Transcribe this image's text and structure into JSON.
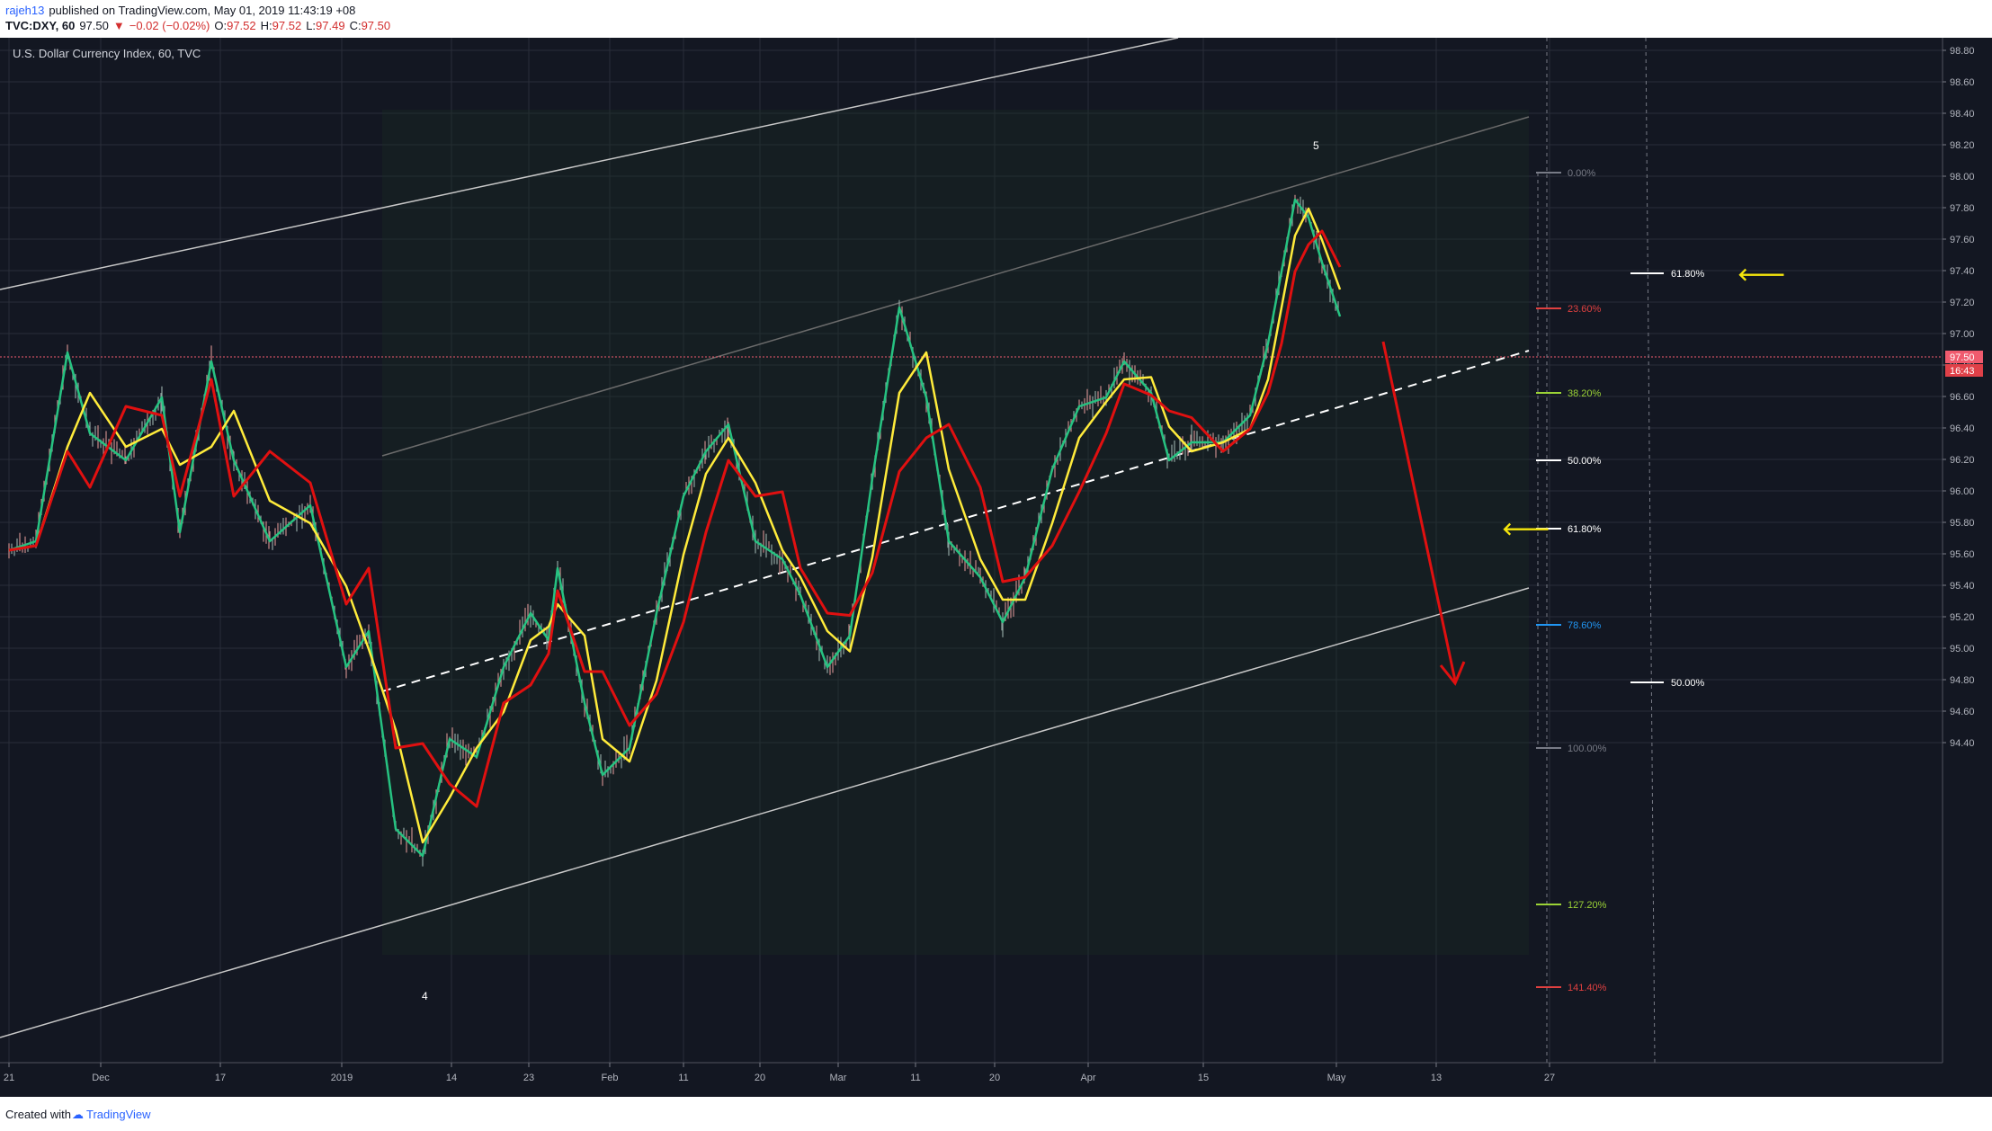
{
  "header": {
    "author": "rajeh13",
    "published_text": "published on TradingView.com, May 01, 2019 11:43:19 +08",
    "symbol": "TVC:DXY, 60",
    "last": "97.50",
    "change": "−0.02 (−0.02%)",
    "o_label": "O:",
    "o_value": "97.52",
    "h_label": "H:",
    "h_value": "97.52",
    "l_label": "L:",
    "l_value": "97.49",
    "c_label": "C:",
    "c_value": "97.50"
  },
  "chart": {
    "title": "U.S. Dollar Currency Index, 60, TVC",
    "price_axis": [
      "98.80",
      "98.60",
      "98.40",
      "98.20",
      "98.00",
      "97.80",
      "97.60",
      "97.40",
      "97.20",
      "97.00",
      "96.80",
      "96.60",
      "96.40",
      "96.20",
      "96.00",
      "95.80",
      "95.60",
      "95.40",
      "95.20",
      "95.00",
      "94.80",
      "94.60",
      "94.40"
    ],
    "time_axis": [
      "21",
      "Dec",
      "17",
      "2019",
      "14",
      "23",
      "Feb",
      "11",
      "20",
      "Mar",
      "11",
      "20",
      "Apr",
      "15",
      "May",
      "13",
      "27"
    ],
    "last_price": "97.50",
    "countdown": "16:43",
    "wave_labels": [
      "5",
      "4"
    ],
    "fib_left": [
      "0.00%",
      "23.60%",
      "38.20%",
      "50.00%",
      "61.80%",
      "78.60%",
      "100.00%",
      "127.20%",
      "141.40%"
    ],
    "fib_right": [
      "61.80%",
      "50.00%"
    ],
    "colors": {
      "background": "#131722",
      "grid": "#2a2e39",
      "ma_fast": "#26c281",
      "ma_mid": "#ffeb3b",
      "ma_slow": "#e01010",
      "arrow": "#e01010",
      "yellow_marker": "#f5e60c",
      "fib_0": "#787b86",
      "fib_236": "#e04040",
      "fib_382": "#9bd336",
      "fib_50": "#ffffff",
      "fib_618": "#ffffff",
      "fib_786": "#2196f3",
      "fib_100": "#787b86",
      "fib_1272": "#9bd336",
      "fib_1414": "#e04040",
      "last_price_badge": "#f05b6e"
    }
  },
  "footer": {
    "created_with": "Created with",
    "brand": "TradingView"
  }
}
